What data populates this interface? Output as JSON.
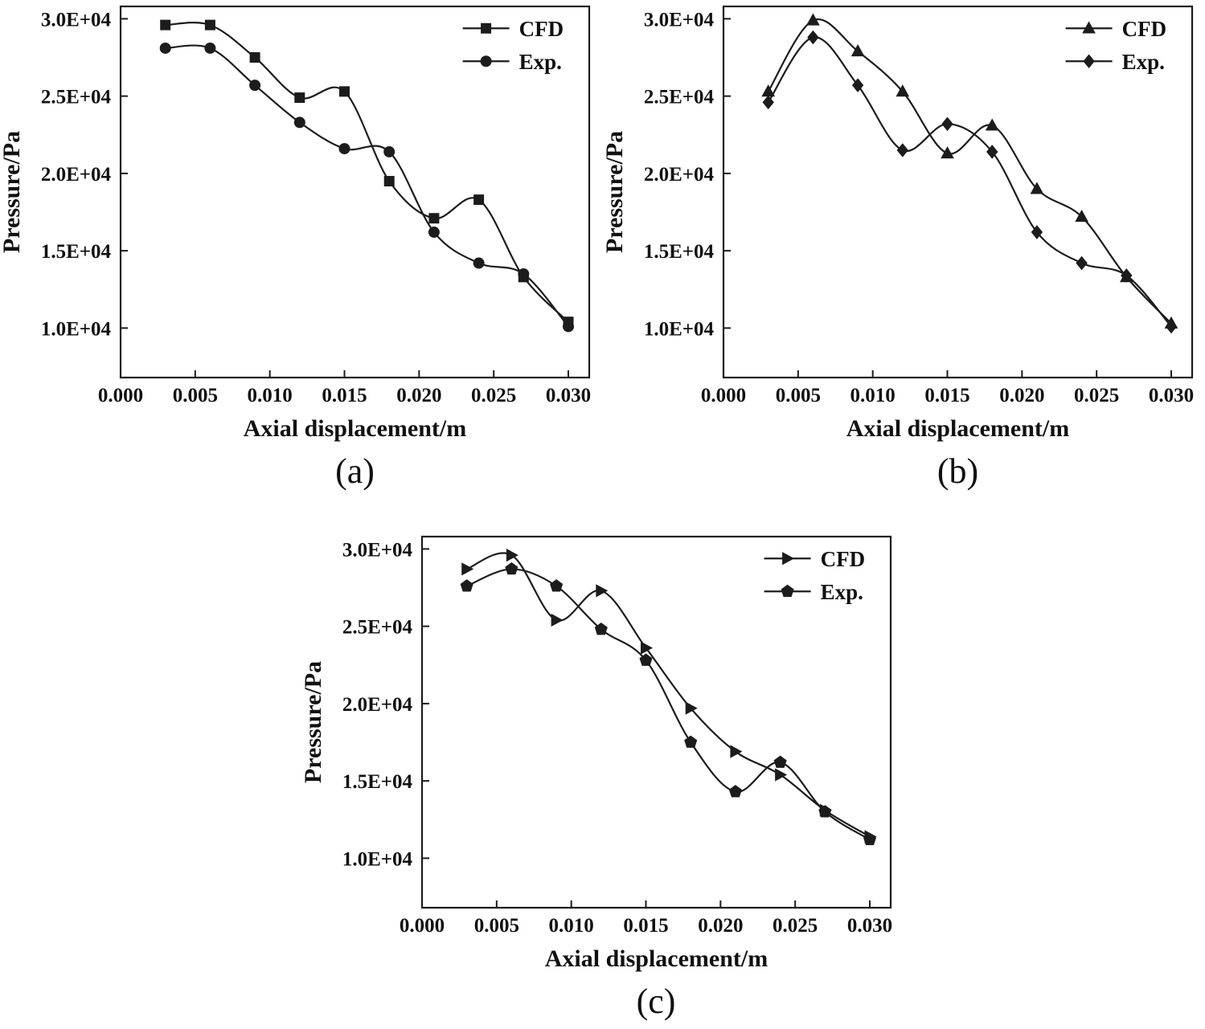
{
  "figure": {
    "background": "#ffffff",
    "line_color": "#1c1c1c",
    "text_color": "#111111"
  },
  "chart_data": [
    {
      "type": "line",
      "caption": "(a)",
      "xlabel": "Axial displacement/m",
      "ylabel": "Pressure/Pa",
      "xlim": [
        0,
        0.0314
      ],
      "ylim": [
        6800,
        30800
      ],
      "grid": false,
      "legend_position": "top-right-inside",
      "legend_pos": [
        0.73,
        0.02
      ],
      "xticks": [
        0,
        0.005,
        0.01,
        0.015,
        0.02,
        0.025,
        0.03
      ],
      "xtick_labels": [
        "0.000",
        "0.005",
        "0.010",
        "0.015",
        "0.020",
        "0.025",
        "0.030"
      ],
      "yticks": [
        10000,
        15000,
        20000,
        25000,
        30000
      ],
      "ytick_labels": [
        "1.0E+04",
        "1.5E+04",
        "2.0E+04",
        "2.5E+04",
        "3.0E+04"
      ],
      "x": [
        0.003,
        0.006,
        0.009,
        0.012,
        0.015,
        0.018,
        0.021,
        0.024,
        0.027,
        0.03
      ],
      "series": [
        {
          "name": "CFD",
          "marker": "square",
          "values": [
            29600,
            29600,
            27500,
            24900,
            25300,
            19500,
            17100,
            18300,
            13300,
            10400
          ]
        },
        {
          "name": "Exp.",
          "marker": "circle",
          "values": [
            28100,
            28100,
            25700,
            23300,
            21600,
            21400,
            16200,
            14200,
            13500,
            10100
          ]
        }
      ]
    },
    {
      "type": "line",
      "caption": "(b)",
      "xlabel": "Axial displacement/m",
      "ylabel": "Pressure/Pa",
      "xlim": [
        0,
        0.0314
      ],
      "ylim": [
        6800,
        30800
      ],
      "grid": false,
      "legend_position": "top-right-inside",
      "legend_pos": [
        0.73,
        0.02
      ],
      "xticks": [
        0,
        0.005,
        0.01,
        0.015,
        0.02,
        0.025,
        0.03
      ],
      "xtick_labels": [
        "0.000",
        "0.005",
        "0.010",
        "0.015",
        "0.020",
        "0.025",
        "0.030"
      ],
      "yticks": [
        10000,
        15000,
        20000,
        25000,
        30000
      ],
      "ytick_labels": [
        "1.0E+04",
        "1.5E+04",
        "2.0E+04",
        "2.5E+04",
        "3.0E+04"
      ],
      "x": [
        0.003,
        0.006,
        0.009,
        0.012,
        0.015,
        0.018,
        0.021,
        0.024,
        0.027,
        0.03
      ],
      "series": [
        {
          "name": "CFD",
          "marker": "triangle-up",
          "values": [
            25300,
            29900,
            27900,
            25300,
            21300,
            23100,
            19000,
            17200,
            13300,
            10300
          ]
        },
        {
          "name": "Exp.",
          "marker": "diamond",
          "values": [
            24600,
            28800,
            25700,
            21500,
            23200,
            21400,
            16200,
            14200,
            13400,
            10100
          ]
        }
      ]
    },
    {
      "type": "line",
      "caption": "(c)",
      "xlabel": "Axial displacement/m",
      "ylabel": "Pressure/Pa",
      "xlim": [
        0,
        0.0314
      ],
      "ylim": [
        6800,
        30800
      ],
      "grid": false,
      "legend_position": "top-right-inside",
      "legend_pos": [
        0.73,
        0.02
      ],
      "xticks": [
        0,
        0.005,
        0.01,
        0.015,
        0.02,
        0.025,
        0.03
      ],
      "xtick_labels": [
        "0.000",
        "0.005",
        "0.010",
        "0.015",
        "0.020",
        "0.025",
        "0.030"
      ],
      "yticks": [
        10000,
        15000,
        20000,
        25000,
        30000
      ],
      "ytick_labels": [
        "1.0E+04",
        "1.5E+04",
        "2.0E+04",
        "2.5E+04",
        "3.0E+04"
      ],
      "x": [
        0.003,
        0.006,
        0.009,
        0.012,
        0.015,
        0.018,
        0.021,
        0.024,
        0.027,
        0.03
      ],
      "series": [
        {
          "name": "CFD",
          "marker": "triangle-right",
          "values": [
            28700,
            29600,
            25400,
            27300,
            23600,
            19700,
            16900,
            15400,
            13100,
            11400
          ]
        },
        {
          "name": "Exp.",
          "marker": "pentagon",
          "values": [
            27600,
            28700,
            27600,
            24800,
            22800,
            17500,
            14300,
            16200,
            13000,
            11200
          ]
        }
      ]
    }
  ]
}
